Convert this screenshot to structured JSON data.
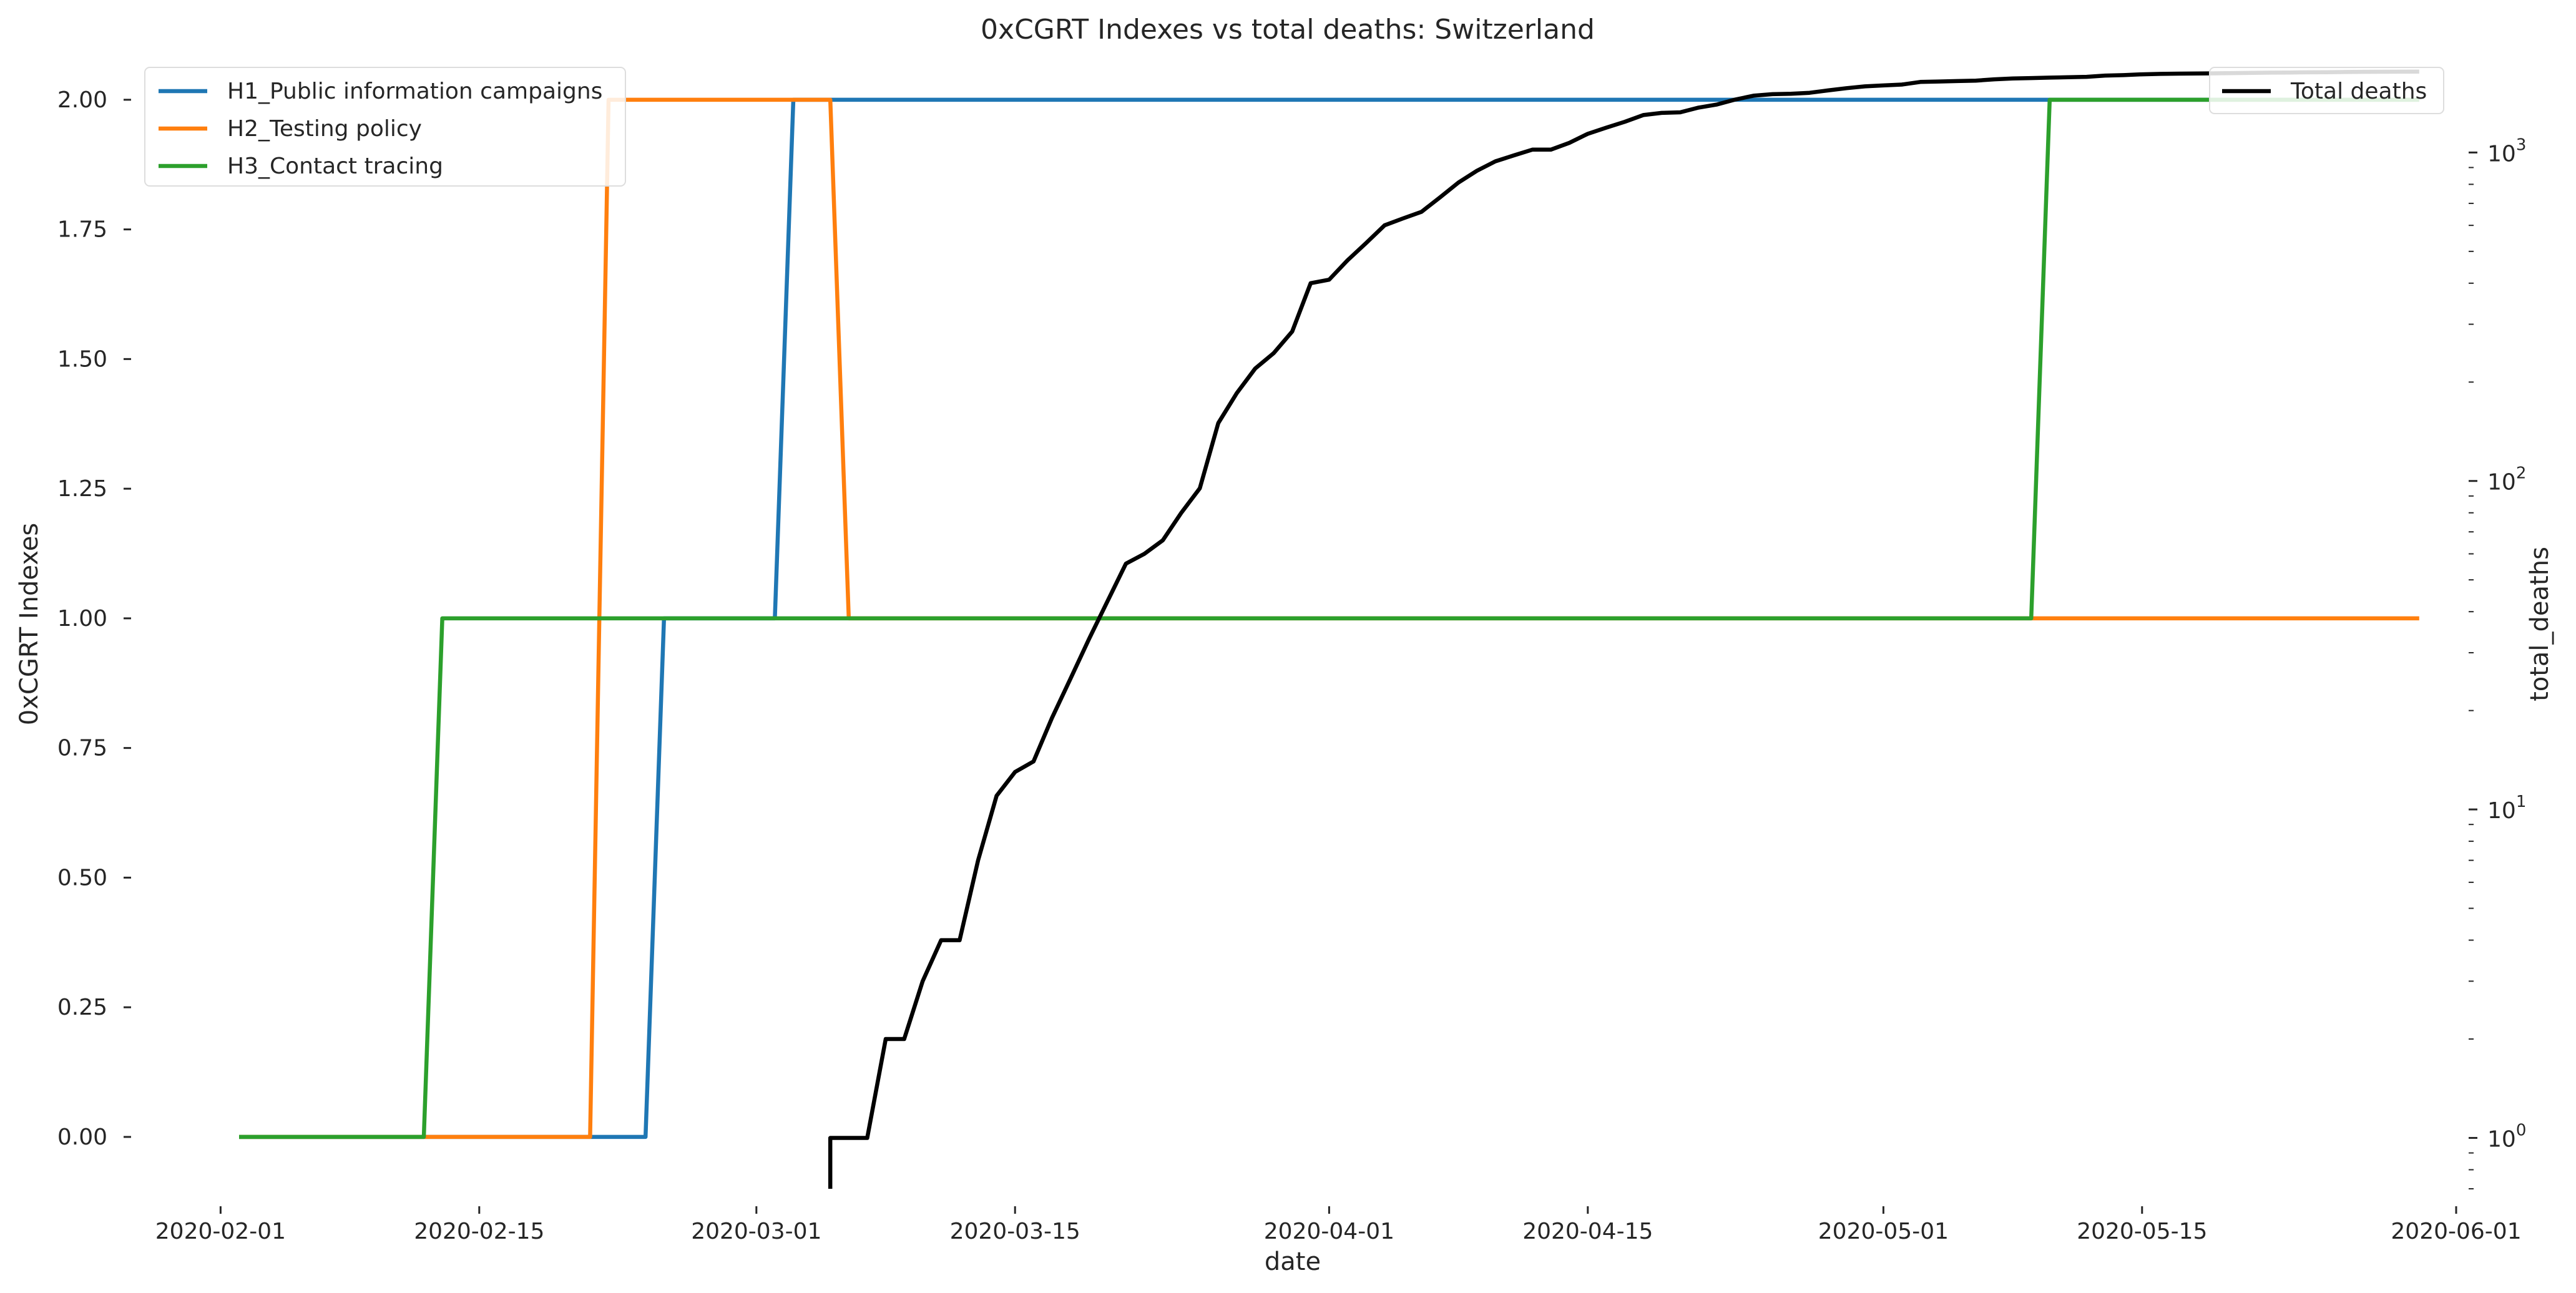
{
  "chart_data": {
    "type": "line",
    "title": "0xCGRT Indexes vs total deaths:  Switzerland",
    "xlabel": "date",
    "ylabel": "0xCGRT Indexes",
    "y2label": "total_deaths",
    "x_ticks": [
      "2020-02-01",
      "2020-02-15",
      "2020-03-01",
      "2020-03-15",
      "2020-04-01",
      "2020-04-15",
      "2020-05-01",
      "2020-05-15",
      "2020-06-01"
    ],
    "y_ticks": [
      "0.00",
      "0.25",
      "0.50",
      "0.75",
      "1.00",
      "1.25",
      "1.50",
      "1.75",
      "2.00"
    ],
    "y2_ticks": [
      "10",
      "10",
      "10",
      "10"
    ],
    "y2_tick_exponents": [
      "0",
      "1",
      "2",
      "3"
    ],
    "xlim": [
      "2020-01-28",
      "2020-06-01"
    ],
    "ylim": [
      -0.1,
      2.06
    ],
    "y2_scale": "log",
    "y2lim": [
      0.7,
      1800
    ],
    "grid": false,
    "legend_left_placement": "top-left",
    "legend_right_placement": "top-right",
    "series": [
      {
        "name": "H1_Public information campaigns",
        "axis": "left",
        "color": "#1f77b4",
        "points": [
          [
            "2020-02-02",
            0
          ],
          [
            "2020-02-24",
            0
          ],
          [
            "2020-02-25",
            1
          ],
          [
            "2020-03-02",
            1
          ],
          [
            "2020-03-03",
            2
          ],
          [
            "2020-05-30",
            2
          ]
        ]
      },
      {
        "name": "H2_Testing policy",
        "axis": "left",
        "color": "#ff7f0e",
        "points": [
          [
            "2020-02-02",
            0
          ],
          [
            "2020-02-21",
            0
          ],
          [
            "2020-02-22",
            2
          ],
          [
            "2020-03-05",
            2
          ],
          [
            "2020-03-06",
            1
          ],
          [
            "2020-05-30",
            1
          ]
        ]
      },
      {
        "name": "H3_Contact tracing",
        "axis": "left",
        "color": "#2ca02c",
        "points": [
          [
            "2020-02-02",
            0
          ],
          [
            "2020-02-12",
            0
          ],
          [
            "2020-02-13",
            1
          ],
          [
            "2020-05-09",
            1
          ],
          [
            "2020-05-10",
            2
          ],
          [
            "2020-05-30",
            2
          ]
        ]
      },
      {
        "name": "Total deaths",
        "axis": "right",
        "color": "#000000",
        "points": [
          [
            "2020-03-05",
            0.7
          ],
          [
            "2020-03-05",
            1
          ],
          [
            "2020-03-07",
            1
          ],
          [
            "2020-03-08",
            2
          ],
          [
            "2020-03-09",
            2
          ],
          [
            "2020-03-10",
            3
          ],
          [
            "2020-03-11",
            4
          ],
          [
            "2020-03-12",
            4
          ],
          [
            "2020-03-13",
            7
          ],
          [
            "2020-03-14",
            11
          ],
          [
            "2020-03-15",
            13
          ],
          [
            "2020-03-16",
            14
          ],
          [
            "2020-03-17",
            19
          ],
          [
            "2020-03-18",
            25
          ],
          [
            "2020-03-19",
            33
          ],
          [
            "2020-03-20",
            43
          ],
          [
            "2020-03-21",
            56
          ],
          [
            "2020-03-22",
            60
          ],
          [
            "2020-03-23",
            66
          ],
          [
            "2020-03-24",
            80
          ],
          [
            "2020-03-25",
            95
          ],
          [
            "2020-03-26",
            150
          ],
          [
            "2020-03-27",
            185
          ],
          [
            "2020-03-28",
            220
          ],
          [
            "2020-03-29",
            245
          ],
          [
            "2020-03-30",
            285
          ],
          [
            "2020-03-31",
            400
          ],
          [
            "2020-04-01",
            410
          ],
          [
            "2020-04-02",
            470
          ],
          [
            "2020-04-03",
            530
          ],
          [
            "2020-04-04",
            600
          ],
          [
            "2020-04-05",
            630
          ],
          [
            "2020-04-06",
            660
          ],
          [
            "2020-04-07",
            730
          ],
          [
            "2020-04-08",
            810
          ],
          [
            "2020-04-09",
            880
          ],
          [
            "2020-04-10",
            940
          ],
          [
            "2020-04-11",
            980
          ],
          [
            "2020-04-12",
            1020
          ],
          [
            "2020-04-13",
            1020
          ],
          [
            "2020-04-14",
            1070
          ],
          [
            "2020-04-15",
            1140
          ],
          [
            "2020-04-16",
            1190
          ],
          [
            "2020-04-17",
            1240
          ],
          [
            "2020-04-18",
            1300
          ],
          [
            "2020-04-19",
            1320
          ],
          [
            "2020-04-20",
            1325
          ],
          [
            "2020-04-21",
            1370
          ],
          [
            "2020-04-22",
            1400
          ],
          [
            "2020-04-23",
            1450
          ],
          [
            "2020-04-24",
            1490
          ],
          [
            "2020-04-25",
            1505
          ],
          [
            "2020-04-26",
            1510
          ],
          [
            "2020-04-27",
            1520
          ],
          [
            "2020-04-28",
            1545
          ],
          [
            "2020-04-29",
            1570
          ],
          [
            "2020-04-30",
            1590
          ],
          [
            "2020-05-01",
            1600
          ],
          [
            "2020-05-02",
            1610
          ],
          [
            "2020-05-03",
            1640
          ],
          [
            "2020-05-04",
            1645
          ],
          [
            "2020-05-05",
            1650
          ],
          [
            "2020-05-06",
            1655
          ],
          [
            "2020-05-07",
            1670
          ],
          [
            "2020-05-08",
            1680
          ],
          [
            "2020-05-09",
            1685
          ],
          [
            "2020-05-10",
            1690
          ],
          [
            "2020-05-11",
            1695
          ],
          [
            "2020-05-12",
            1700
          ],
          [
            "2020-05-13",
            1715
          ],
          [
            "2020-05-14",
            1720
          ],
          [
            "2020-05-15",
            1730
          ],
          [
            "2020-05-16",
            1735
          ],
          [
            "2020-05-17",
            1738
          ],
          [
            "2020-05-18",
            1740
          ],
          [
            "2020-05-19",
            1742
          ],
          [
            "2020-05-20",
            1745
          ],
          [
            "2020-05-21",
            1747
          ],
          [
            "2020-05-22",
            1750
          ],
          [
            "2020-05-23",
            1752
          ],
          [
            "2020-05-24",
            1754
          ],
          [
            "2020-05-25",
            1756
          ],
          [
            "2020-05-26",
            1758
          ],
          [
            "2020-05-27",
            1760
          ],
          [
            "2020-05-28",
            1761
          ],
          [
            "2020-05-29",
            1762
          ],
          [
            "2020-05-30",
            1763
          ]
        ]
      }
    ]
  }
}
